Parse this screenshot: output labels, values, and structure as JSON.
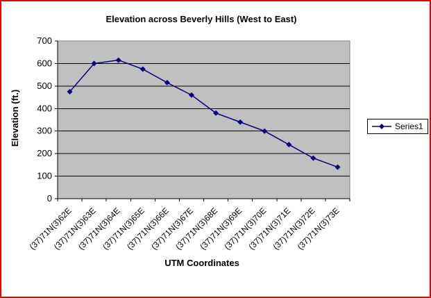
{
  "frame": {
    "border_color": "#e80000",
    "background": "#ffffff"
  },
  "chart_data": {
    "type": "line",
    "title": "Elevation across Beverly Hills (West to East)",
    "xlabel": "UTM Coordinates",
    "ylabel": "Elevation (ft.)",
    "categories": [
      "(37)71N(3)62E",
      "(37)71N(3)63E",
      "(37)71N(3)64E",
      "(37)71N(3)65E",
      "(37)71N(3)66E",
      "(37)71N(3)67E",
      "(37)71N(3)68E",
      "(37)71N(3)69E",
      "(37)71N(3)70E",
      "(37)71N(3)71E",
      "(37)71N(3)72E",
      "(37)71N(3)73E"
    ],
    "series": [
      {
        "name": "Series1",
        "color": "#000080",
        "marker": "diamond",
        "values": [
          475,
          600,
          615,
          575,
          515,
          460,
          380,
          340,
          300,
          240,
          180,
          140
        ]
      }
    ],
    "ylim": [
      0,
      700
    ],
    "ytick_step": 100,
    "grid": "horizontal-major",
    "legend_position": "right",
    "plot_background": "#c0c0c0",
    "plot_border": "#808080",
    "gridline_color": "#000000",
    "axis_color": "#000000"
  }
}
